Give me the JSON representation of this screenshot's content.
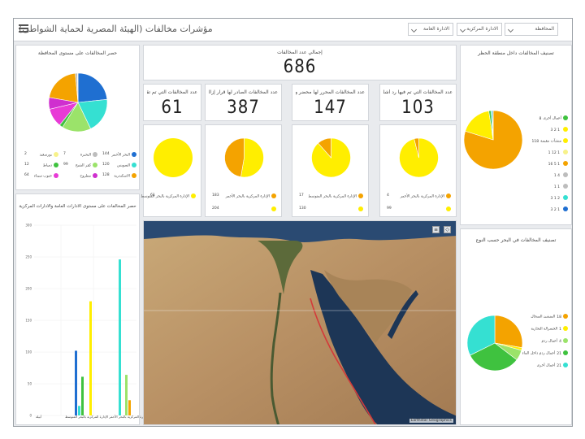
{
  "header": {
    "title": "مؤشرات مخالفات (الهيئة المصرية لحماية الشواطئ)",
    "filters": [
      {
        "label": "المحافظة"
      },
      {
        "label": "الادارة المركزية"
      },
      {
        "label": "الادارة العامة"
      }
    ]
  },
  "total": {
    "label": "إجمالي عدد المخالفات",
    "value": "686"
  },
  "kpis": [
    {
      "label": "عدد المخالفات التي تم فيها رد أشلة ثابتة",
      "value": "103"
    },
    {
      "label": "عدد المخالفات المحرر لها محضر ولم يصدر قرار إزالة",
      "value": "147"
    },
    {
      "label": "عدد المخالفات الصادر لها قرار إزالة",
      "value": "387"
    },
    {
      "label": "عدد المخالفات التي تم تقنين وضعها",
      "value": "61"
    }
  ],
  "kpi_pies": [
    {
      "legend": [
        {
          "label": "الإدارة المركزية بالبحر الأحمر",
          "value": "4",
          "color": "#f4a300"
        },
        {
          "label": "",
          "value": "99",
          "color": "#ffee00"
        }
      ]
    },
    {
      "legend": [
        {
          "label": "الإدارة المركزية بالبحر المتوسط",
          "value": "17",
          "color": "#f4a300"
        },
        {
          "label": "",
          "value": "130",
          "color": "#ffee00"
        }
      ]
    },
    {
      "legend": [
        {
          "label": "الإدارة المركزية بالبحر الأحمر",
          "value": "183",
          "color": "#f4a300"
        },
        {
          "label": "",
          "value": "204",
          "color": "#ffee00"
        }
      ]
    },
    {
      "legend": [
        {
          "label": "الإدارة المركزية بالبحر المتوسط",
          "value": "61",
          "color": "#ffee00"
        }
      ]
    }
  ],
  "governorate": {
    "title": "حصر المخالفات على مستوى المحافظة",
    "legend": [
      {
        "label": "البحر الأحمر",
        "value": "144",
        "color": "#1f6fd1"
      },
      {
        "label": "البحيرة",
        "value": "7",
        "color": "#bdbdbd"
      },
      {
        "label": "بورسعيد",
        "value": "2",
        "color": "#f7f28a"
      },
      {
        "label": "السويس",
        "value": "120",
        "color": "#35e0d2"
      },
      {
        "label": "كفر الشيخ",
        "value": "99",
        "color": "#9be36a"
      },
      {
        "label": "دمياط",
        "value": "12",
        "color": "#3fc23f"
      },
      {
        "label": "الاسكندرية",
        "value": "128",
        "color": "#f4a300"
      },
      {
        "label": "مطروح",
        "value": "",
        "color": "#cf2fcf"
      },
      {
        "label": "جنوب سيناء",
        "value": "64",
        "color": "#e83ad6"
      }
    ]
  },
  "admin_bars": {
    "title": "حصر المخالفات على مستوى الادارات العامة والادارات المركزية",
    "x_label_1": "أبيلة",
    "x_label_2": "الإدارة المركزية بالبحر الأحمر الإدارة المركزية بالبحر المتوسط"
  },
  "risk_zone": {
    "title": "تصنيف المخالفات داخل منطقة الحظر",
    "legend": [
      {
        "label": "أعمال أخرى",
        "value": "8",
        "color": "#3fc23f"
      },
      {
        "label": "",
        "value": "1 2 3",
        "color": "#ffee00"
      },
      {
        "label": "منشآت مقيمة",
        "value": "118",
        "color": "#ffee00"
      },
      {
        "label": "",
        "value": "1 12 1",
        "color": "#f7f28a"
      },
      {
        "label": "",
        "value": "1 5 16",
        "color": "#f4a300"
      },
      {
        "label": "",
        "value": "4 1",
        "color": "#bdbdbd"
      },
      {
        "label": "",
        "value": "1 1",
        "color": "#bdbdbd"
      },
      {
        "label": "",
        "value": "2 1 3",
        "color": "#35e0d2"
      },
      {
        "label": "",
        "value": "1 2 3",
        "color": "#1f6fd1"
      }
    ]
  },
  "by_type": {
    "title": "تصنيف المخالفات في البحر حسب النوع",
    "legend": [
      {
        "label": "المنشئ الصحال",
        "value": "18",
        "color": "#f4a300"
      },
      {
        "label": "الجسرالة التجارية",
        "value": "1",
        "color": "#ffee00"
      },
      {
        "label": "أعمال ردم",
        "value": "4",
        "color": "#9be36a"
      },
      {
        "label": "أعمال ردم داخل الماء",
        "value": "21",
        "color": "#3fc23f"
      },
      {
        "label": "أعمال أخرى",
        "value": "21",
        "color": "#35e0d2"
      }
    ]
  },
  "map": {
    "attribution": "Earthstar Geographics"
  },
  "chart_data": [
    {
      "type": "pie",
      "title": "حصر المخالفات على مستوى المحافظة",
      "categories": [
        "البحر الأحمر",
        "السويس",
        "كفر الشيخ",
        "دمياط",
        "جنوب سيناء",
        "مطروح",
        "الاسكندرية",
        "البحيرة",
        "بورسعيد"
      ],
      "values": [
        144,
        120,
        99,
        12,
        64,
        40,
        128,
        7,
        2
      ],
      "colors": [
        "#1f6fd1",
        "#35e0d2",
        "#9be36a",
        "#3fc23f",
        "#e83ad6",
        "#cf2fcf",
        "#f4a300",
        "#bdbdbd",
        "#f7f28a"
      ]
    },
    {
      "type": "bar",
      "title": "حصر المخالفات على مستوى الادارات العامة والادارات المركزية",
      "ylim": [
        0,
        300
      ],
      "yticks": [
        0,
        50,
        100,
        150,
        200,
        250,
        300
      ],
      "series": [
        {
          "color": "#1f6fd1",
          "values": [
            0,
            102
          ]
        },
        {
          "color": "#35e0d2",
          "values": [
            0,
            15
          ]
        },
        {
          "color": "#3fc23f",
          "values": [
            0,
            61
          ]
        },
        {
          "color": "#ffee00",
          "values": [
            0,
            180
          ]
        },
        {
          "color": "#35e0d2",
          "values": [
            0,
            246
          ]
        },
        {
          "color": "#9be36a",
          "values": [
            0,
            64
          ]
        },
        {
          "color": "#f4a300",
          "values": [
            0,
            24
          ]
        }
      ]
    },
    {
      "type": "pie",
      "values": [
        99,
        4
      ],
      "colors": [
        "#ffee00",
        "#f4a300"
      ]
    },
    {
      "type": "pie",
      "values": [
        130,
        17
      ],
      "colors": [
        "#ffee00",
        "#f4a300"
      ]
    },
    {
      "type": "pie",
      "values": [
        204,
        183
      ],
      "colors": [
        "#ffee00",
        "#f4a300"
      ]
    },
    {
      "type": "pie",
      "values": [
        61
      ],
      "colors": [
        "#ffee00"
      ]
    },
    {
      "type": "pie",
      "title": "تصنيف المخالفات داخل منطقة الحظر",
      "values": [
        530,
        118,
        8,
        5,
        3
      ],
      "colors": [
        "#f4a300",
        "#ffee00",
        "#3fc23f",
        "#35e0d2",
        "#1f6fd1"
      ]
    },
    {
      "type": "pie",
      "title": "تصنيف المخالفات في البحر حسب النوع",
      "values": [
        18,
        1,
        4,
        21,
        21
      ],
      "colors": [
        "#f4a300",
        "#ffee00",
        "#9be36a",
        "#3fc23f",
        "#35e0d2"
      ]
    }
  ]
}
